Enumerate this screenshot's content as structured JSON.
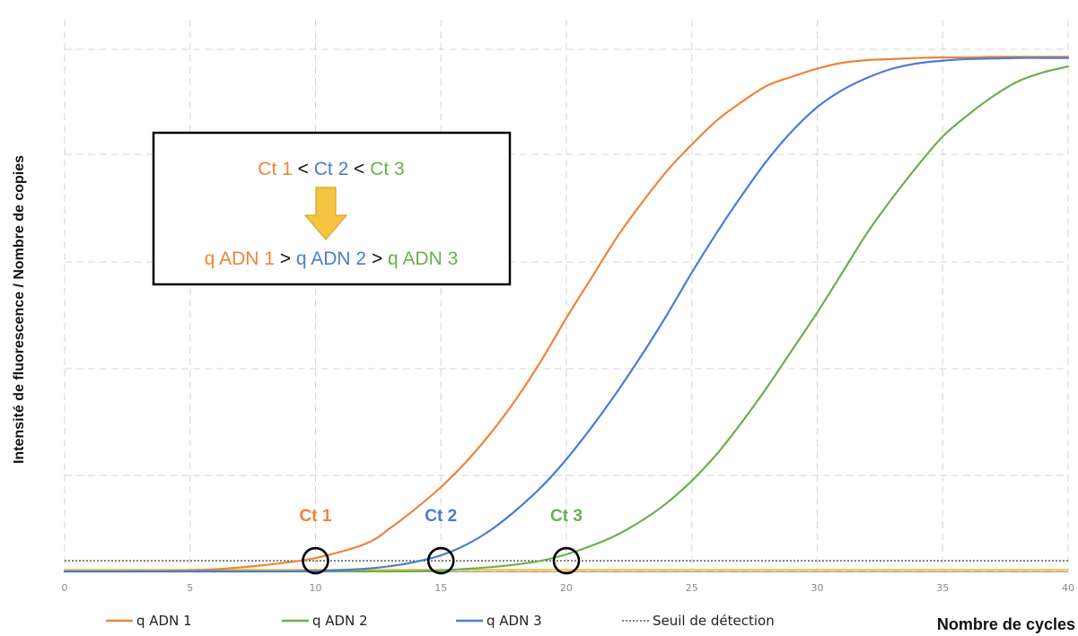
{
  "chart_data": {
    "type": "line",
    "xlabel": "Nombre de cycles",
    "ylabel": "Intensité de fluorescence / Nombre de copies",
    "xlim": [
      0,
      40
    ],
    "ylim": [
      0,
      100
    ],
    "x_ticks": [
      "0",
      "5",
      "10",
      "15",
      "20",
      "25",
      "30",
      "35",
      "40"
    ],
    "grid": true,
    "legend_position": "bottom",
    "series": [
      {
        "name": "q ADN 1",
        "color": "#f0833a",
        "x": [
          0,
          2,
          4,
          6,
          8,
          10,
          12,
          13,
          14,
          15,
          16,
          17,
          18,
          19,
          20,
          21,
          22,
          23,
          24,
          25,
          26,
          27,
          28,
          29,
          30,
          31,
          32,
          33,
          34,
          35,
          36,
          37,
          38,
          39,
          40
        ],
        "y": [
          0,
          0,
          0.1,
          0.4,
          1.2,
          2.5,
          5.2,
          8.2,
          11.8,
          15.8,
          20.5,
          26.0,
          32.3,
          39.5,
          47.5,
          55.0,
          62.5,
          69.0,
          75.0,
          80.0,
          84.5,
          88.0,
          91.0,
          92.7,
          94.2,
          95.3,
          95.8,
          96.0,
          96.2,
          96.3,
          96.3,
          96.4,
          96.4,
          96.4,
          96.4
        ]
      },
      {
        "name": "q ADN 2",
        "color": "#6ab04c",
        "x": [
          0,
          5,
          10,
          13,
          15,
          17,
          18,
          19,
          20,
          21,
          22,
          23,
          24,
          25,
          26,
          27,
          28,
          29,
          30,
          31,
          32,
          33,
          34,
          35,
          36,
          37,
          38,
          39,
          40
        ],
        "y": [
          0,
          0,
          0,
          0,
          0.2,
          0.8,
          1.3,
          2.0,
          3.2,
          4.8,
          6.8,
          9.5,
          12.8,
          17.0,
          22.0,
          28.0,
          34.5,
          41.5,
          48.5,
          56.0,
          63.5,
          70.0,
          76.0,
          81.5,
          85.5,
          89.0,
          91.8,
          93.5,
          94.6
        ]
      },
      {
        "name": "q ADN 3",
        "color": "#4a7cd4",
        "x": [
          0,
          5,
          8,
          10,
          12,
          13,
          14,
          15,
          16,
          17,
          18,
          19,
          20,
          21,
          22,
          23,
          24,
          25,
          26,
          27,
          28,
          29,
          30,
          31,
          32,
          33,
          34,
          35,
          36,
          37,
          38,
          39,
          40
        ],
        "y": [
          0,
          0,
          0,
          0.1,
          0.5,
          1.0,
          1.8,
          3.0,
          5.0,
          7.8,
          11.5,
          15.8,
          21.0,
          27.0,
          33.5,
          40.5,
          48.0,
          56.0,
          63.5,
          70.5,
          77.0,
          82.5,
          87.0,
          90.2,
          92.5,
          94.2,
          95.2,
          95.7,
          96.0,
          96.1,
          96.2,
          96.2,
          96.2
        ]
      }
    ],
    "threshold": {
      "name": "Seuil de détection",
      "y": 2.0,
      "color": "#333333"
    },
    "baseline": {
      "y": 0.3,
      "color": "#f2c22e"
    },
    "ct_points": [
      {
        "label": "Ct 1",
        "x": 10,
        "color": "#f0833a"
      },
      {
        "label": "Ct 2",
        "x": 15,
        "color": "#4a7cd4"
      },
      {
        "label": "Ct 3",
        "x": 20,
        "color": "#6ab04c"
      }
    ],
    "annotation_box": {
      "line1": [
        {
          "text": "Ct 1",
          "color": "#f0833a"
        },
        {
          "text": " < ",
          "color": "#111111"
        },
        {
          "text": "Ct 2",
          "color": "#4a7cd4"
        },
        {
          "text": " < ",
          "color": "#111111"
        },
        {
          "text": "Ct 3",
          "color": "#6ab04c"
        }
      ],
      "line2": [
        {
          "text": "q ADN 1",
          "color": "#f0833a"
        },
        {
          "text": " > ",
          "color": "#111111"
        },
        {
          "text": "q ADN 2",
          "color": "#4a7cd4"
        },
        {
          "text": " > ",
          "color": "#111111"
        },
        {
          "text": "q ADN 3",
          "color": "#6ab04c"
        }
      ],
      "arrow_color": "#f5c542"
    },
    "legend": [
      {
        "label": "q ADN 1",
        "color": "#f0833a",
        "style": "solid"
      },
      {
        "label": "q ADN 2",
        "color": "#6ab04c",
        "style": "solid"
      },
      {
        "label": "q ADN 3",
        "color": "#4a7cd4",
        "style": "solid"
      },
      {
        "label": "Seuil de détection",
        "color": "#333333",
        "style": "dotted"
      }
    ]
  }
}
